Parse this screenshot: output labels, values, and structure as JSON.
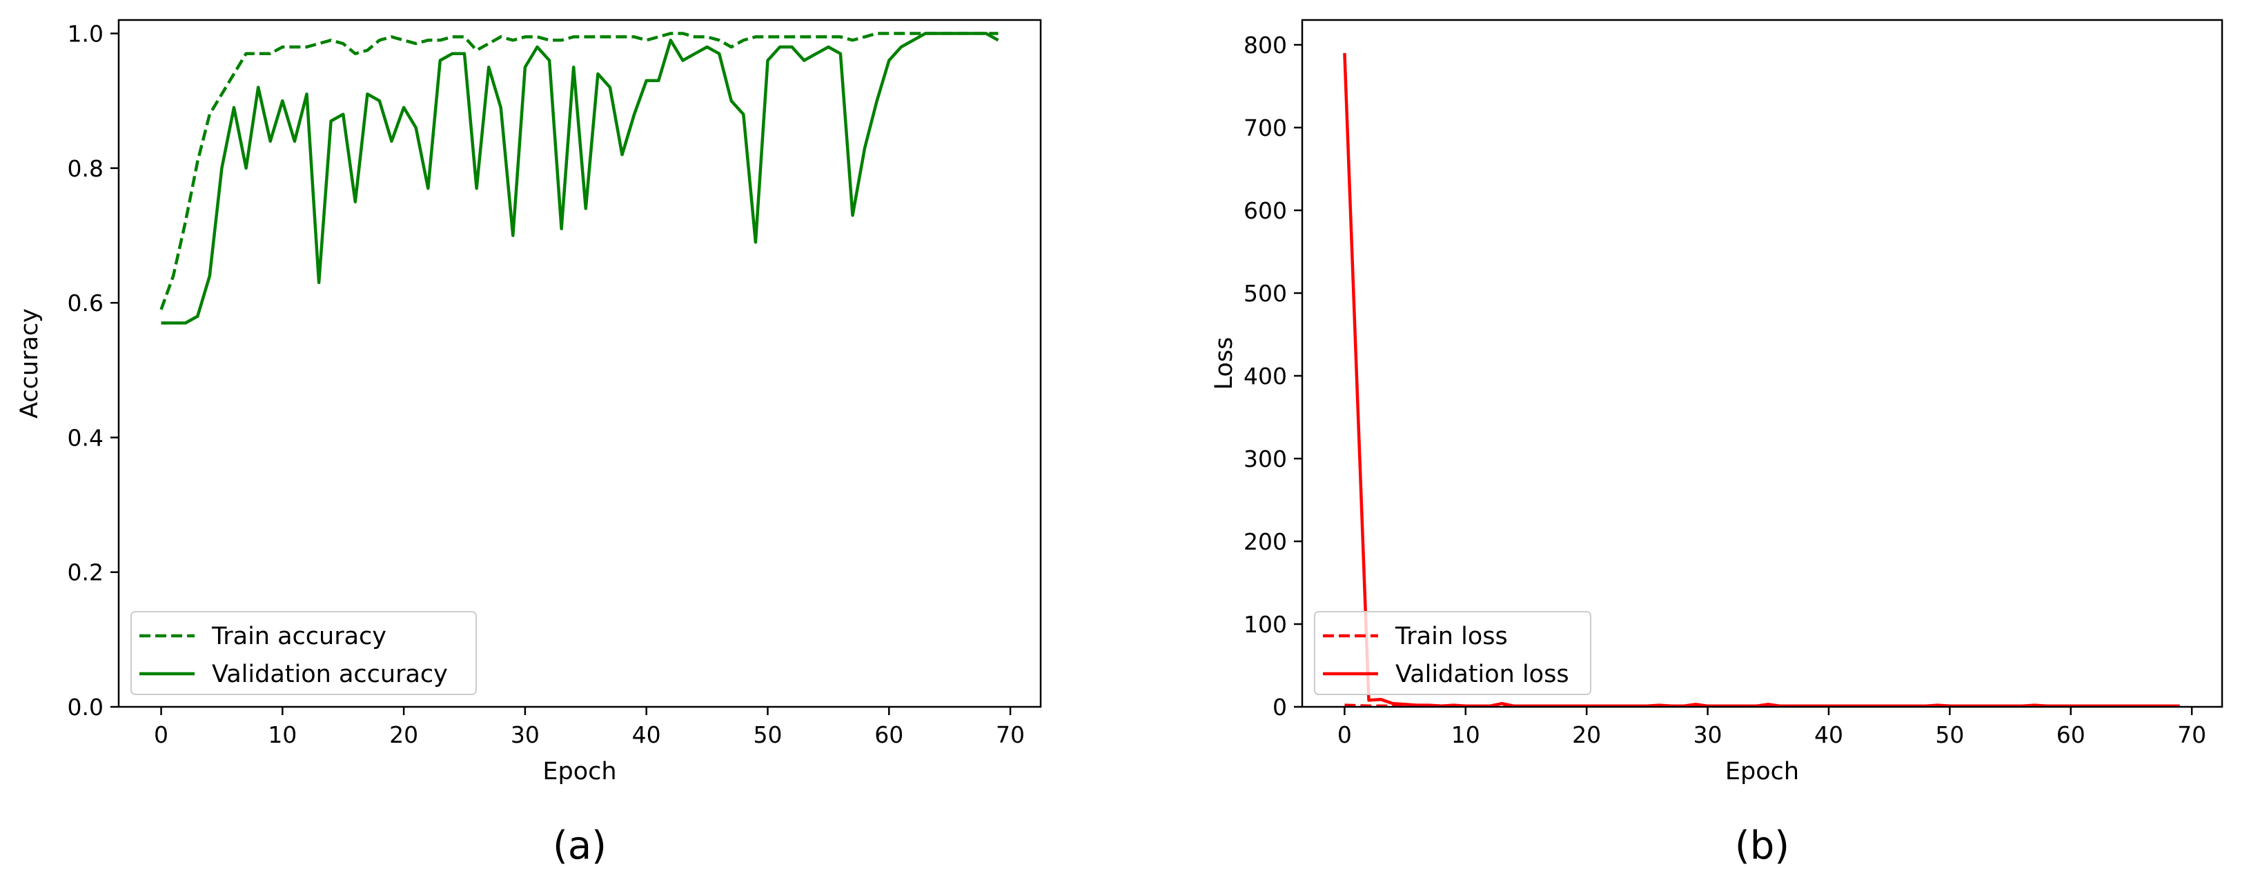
{
  "chart_data": [
    {
      "type": "line",
      "xlabel": "Epoch",
      "ylabel": "Accuracy",
      "caption": "(a)",
      "xlim": [
        -3.5,
        72.5
      ],
      "ylim": [
        0.0,
        1.02
      ],
      "xticks": [
        0,
        10,
        20,
        30,
        40,
        50,
        60,
        70
      ],
      "xtick_labels": [
        "0",
        "10",
        "20",
        "30",
        "40",
        "50",
        "60",
        "70"
      ],
      "yticks": [
        0.0,
        0.2,
        0.4,
        0.6,
        0.8,
        1.0
      ],
      "ytick_labels": [
        "0.0",
        "0.2",
        "0.4",
        "0.6",
        "0.8",
        "1.0"
      ],
      "grid": false,
      "legend_position": "lower-left",
      "series": [
        {
          "name": "Train accuracy",
          "style": "dashed",
          "color": "#008000",
          "x": [
            0,
            1,
            2,
            3,
            4,
            5,
            6,
            7,
            8,
            9,
            10,
            11,
            12,
            13,
            14,
            15,
            16,
            17,
            18,
            19,
            20,
            21,
            22,
            23,
            24,
            25,
            26,
            27,
            28,
            29,
            30,
            31,
            32,
            33,
            34,
            35,
            36,
            37,
            38,
            39,
            40,
            41,
            42,
            43,
            44,
            45,
            46,
            47,
            48,
            49,
            50,
            51,
            52,
            53,
            54,
            55,
            56,
            57,
            58,
            59,
            60,
            61,
            62,
            63,
            64,
            65,
            66,
            67,
            68,
            69
          ],
          "values": [
            0.59,
            0.64,
            0.72,
            0.81,
            0.88,
            0.91,
            0.94,
            0.97,
            0.97,
            0.97,
            0.98,
            0.98,
            0.98,
            0.985,
            0.99,
            0.985,
            0.97,
            0.975,
            0.99,
            0.995,
            0.99,
            0.985,
            0.99,
            0.99,
            0.995,
            0.995,
            0.975,
            0.985,
            0.995,
            0.99,
            0.995,
            0.995,
            0.99,
            0.99,
            0.995,
            0.995,
            0.995,
            0.995,
            0.995,
            0.995,
            0.99,
            0.995,
            1.0,
            1.0,
            0.995,
            0.995,
            0.99,
            0.98,
            0.99,
            0.995,
            0.995,
            0.995,
            0.995,
            0.995,
            0.995,
            0.995,
            0.995,
            0.99,
            0.995,
            1.0,
            1.0,
            1.0,
            1.0,
            1.0,
            1.0,
            1.0,
            1.0,
            1.0,
            1.0,
            1.0
          ]
        },
        {
          "name": "Validation accuracy",
          "style": "solid",
          "color": "#008000",
          "x": [
            0,
            1,
            2,
            3,
            4,
            5,
            6,
            7,
            8,
            9,
            10,
            11,
            12,
            13,
            14,
            15,
            16,
            17,
            18,
            19,
            20,
            21,
            22,
            23,
            24,
            25,
            26,
            27,
            28,
            29,
            30,
            31,
            32,
            33,
            34,
            35,
            36,
            37,
            38,
            39,
            40,
            41,
            42,
            43,
            44,
            45,
            46,
            47,
            48,
            49,
            50,
            51,
            52,
            53,
            54,
            55,
            56,
            57,
            58,
            59,
            60,
            61,
            62,
            63,
            64,
            65,
            66,
            67,
            68,
            69
          ],
          "values": [
            0.57,
            0.57,
            0.57,
            0.58,
            0.64,
            0.8,
            0.89,
            0.8,
            0.92,
            0.84,
            0.9,
            0.84,
            0.91,
            0.63,
            0.87,
            0.88,
            0.75,
            0.91,
            0.9,
            0.84,
            0.89,
            0.86,
            0.77,
            0.96,
            0.97,
            0.97,
            0.77,
            0.95,
            0.89,
            0.7,
            0.95,
            0.98,
            0.96,
            0.71,
            0.95,
            0.74,
            0.94,
            0.92,
            0.82,
            0.88,
            0.93,
            0.93,
            0.99,
            0.96,
            0.97,
            0.98,
            0.97,
            0.9,
            0.88,
            0.69,
            0.96,
            0.98,
            0.98,
            0.96,
            0.97,
            0.98,
            0.97,
            0.73,
            0.83,
            0.9,
            0.96,
            0.98,
            0.99,
            1.0,
            1.0,
            1.0,
            1.0,
            1.0,
            1.0,
            0.99
          ]
        }
      ]
    },
    {
      "type": "line",
      "xlabel": "Epoch",
      "ylabel": "Loss",
      "caption": "(b)",
      "xlim": [
        -3.5,
        72.5
      ],
      "ylim": [
        0,
        830
      ],
      "xticks": [
        0,
        10,
        20,
        30,
        40,
        50,
        60,
        70
      ],
      "xtick_labels": [
        "0",
        "10",
        "20",
        "30",
        "40",
        "50",
        "60",
        "70"
      ],
      "yticks": [
        0,
        100,
        200,
        300,
        400,
        500,
        600,
        700,
        800
      ],
      "ytick_labels": [
        "0",
        "100",
        "200",
        "300",
        "400",
        "500",
        "600",
        "700",
        "800"
      ],
      "grid": false,
      "legend_position": "lower-left",
      "series": [
        {
          "name": "Train loss",
          "style": "dashed",
          "color": "#ff0000",
          "x": [
            0,
            1,
            2,
            3,
            4,
            5,
            6,
            7,
            8,
            9,
            10,
            11,
            12,
            13,
            14,
            15,
            16,
            17,
            18,
            19,
            20,
            21,
            22,
            23,
            24,
            25,
            26,
            27,
            28,
            29,
            30,
            31,
            32,
            33,
            34,
            35,
            36,
            37,
            38,
            39,
            40,
            41,
            42,
            43,
            44,
            45,
            46,
            47,
            48,
            49,
            50,
            51,
            52,
            53,
            54,
            55,
            56,
            57,
            58,
            59,
            60,
            61,
            62,
            63,
            64,
            65,
            66,
            67,
            68,
            69
          ],
          "values": [
            2,
            1.5,
            1,
            1,
            0.8,
            0.6,
            0.5,
            0.5,
            0.4,
            0.4,
            0.3,
            0.3,
            0.3,
            0.3,
            0.3,
            0.3,
            0.3,
            0.3,
            0.3,
            0.3,
            0.3,
            0.3,
            0.3,
            0.3,
            0.3,
            0.3,
            0.3,
            0.3,
            0.3,
            0.3,
            0.3,
            0.3,
            0.3,
            0.3,
            0.3,
            0.3,
            0.3,
            0.3,
            0.3,
            0.3,
            0.3,
            0.3,
            0.3,
            0.3,
            0.3,
            0.3,
            0.3,
            0.3,
            0.3,
            0.3,
            0.3,
            0.3,
            0.3,
            0.3,
            0.3,
            0.3,
            0.3,
            0.3,
            0.3,
            0.3,
            0.3,
            0.3,
            0.3,
            0.3,
            0.3,
            0.3,
            0.3,
            0.3,
            0.3,
            0.3
          ]
        },
        {
          "name": "Validation loss",
          "style": "solid",
          "color": "#ff0000",
          "x": [
            0,
            1,
            2,
            3,
            4,
            5,
            6,
            7,
            8,
            9,
            10,
            11,
            12,
            13,
            14,
            15,
            16,
            17,
            18,
            19,
            20,
            21,
            22,
            23,
            24,
            25,
            26,
            27,
            28,
            29,
            30,
            31,
            32,
            33,
            34,
            35,
            36,
            37,
            38,
            39,
            40,
            41,
            42,
            43,
            44,
            45,
            46,
            47,
            48,
            49,
            50,
            51,
            52,
            53,
            54,
            55,
            56,
            57,
            58,
            59,
            60,
            61,
            62,
            63,
            64,
            65,
            66,
            67,
            68,
            69
          ],
          "values": [
            790,
            400,
            8,
            9,
            4,
            3,
            2,
            2,
            1,
            2,
            1,
            1,
            1,
            4,
            1,
            1,
            1,
            1,
            1,
            1,
            1,
            1,
            1,
            1,
            1,
            1,
            2,
            1,
            1,
            3,
            1,
            1,
            1,
            1,
            1,
            3,
            1,
            1,
            1,
            1,
            1,
            1,
            1,
            1,
            1,
            1,
            1,
            1,
            1,
            2,
            1,
            1,
            1,
            1,
            1,
            1,
            1,
            2,
            1,
            1,
            1,
            1,
            1,
            1,
            1,
            1,
            1,
            1,
            1,
            1
          ]
        }
      ]
    }
  ]
}
